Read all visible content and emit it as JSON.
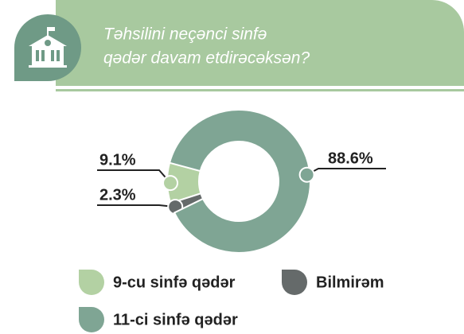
{
  "chart_data": {
    "type": "donut",
    "title": [
      "Təhsilini neçənci sinfə",
      "qədər davam etdirəcəksən?"
    ],
    "categories": [
      "9-cu sinfə qədər",
      "Bilmirəm",
      "11-ci sinfə qədər"
    ],
    "values": [
      9.1,
      2.3,
      88.6
    ],
    "value_labels": [
      "9.1%",
      "2.3%",
      "88.6%"
    ],
    "colors": [
      "#b3d1a3",
      "#656a6a",
      "#7fa594"
    ]
  }
}
